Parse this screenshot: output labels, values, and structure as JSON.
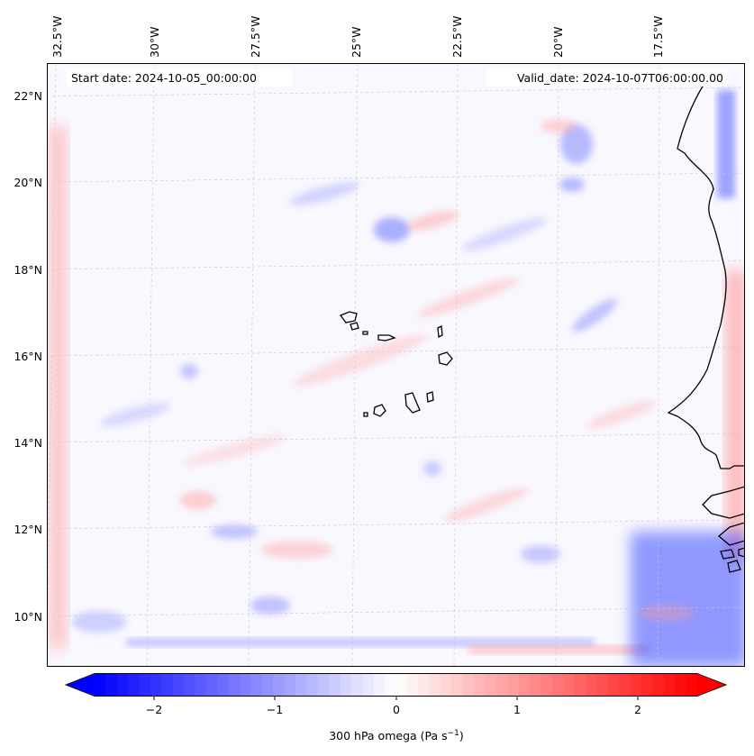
{
  "map": {
    "start_date_label": "Start date: 2024-10-05_00:00:00",
    "valid_date_label": "Valid_date: 2024-10-07T06:00:00.00",
    "lon_ticks": [
      "32.5°W",
      "30°W",
      "27.5°W",
      "25°W",
      "22.5°W",
      "20°W",
      "17.5°W"
    ],
    "lat_ticks": [
      "22°N",
      "20°N",
      "18°N",
      "16°N",
      "14°N",
      "12°N",
      "10°N"
    ],
    "gridlines": true,
    "colormap": "bwr",
    "colors": {
      "negative": "#0000ff",
      "neutral": "#ffffff",
      "positive": "#ff0000",
      "coastline": "#000000",
      "grid": "#c8c8c8"
    }
  },
  "colorbar": {
    "label_prefix": "300 hPa omega (Pa s",
    "label_exp": "−1",
    "label_suffix": ")",
    "ticks": [
      "−2",
      "−1",
      "0",
      "1",
      "2"
    ],
    "range": [
      -2.7,
      2.7
    ],
    "extend": "both"
  }
}
